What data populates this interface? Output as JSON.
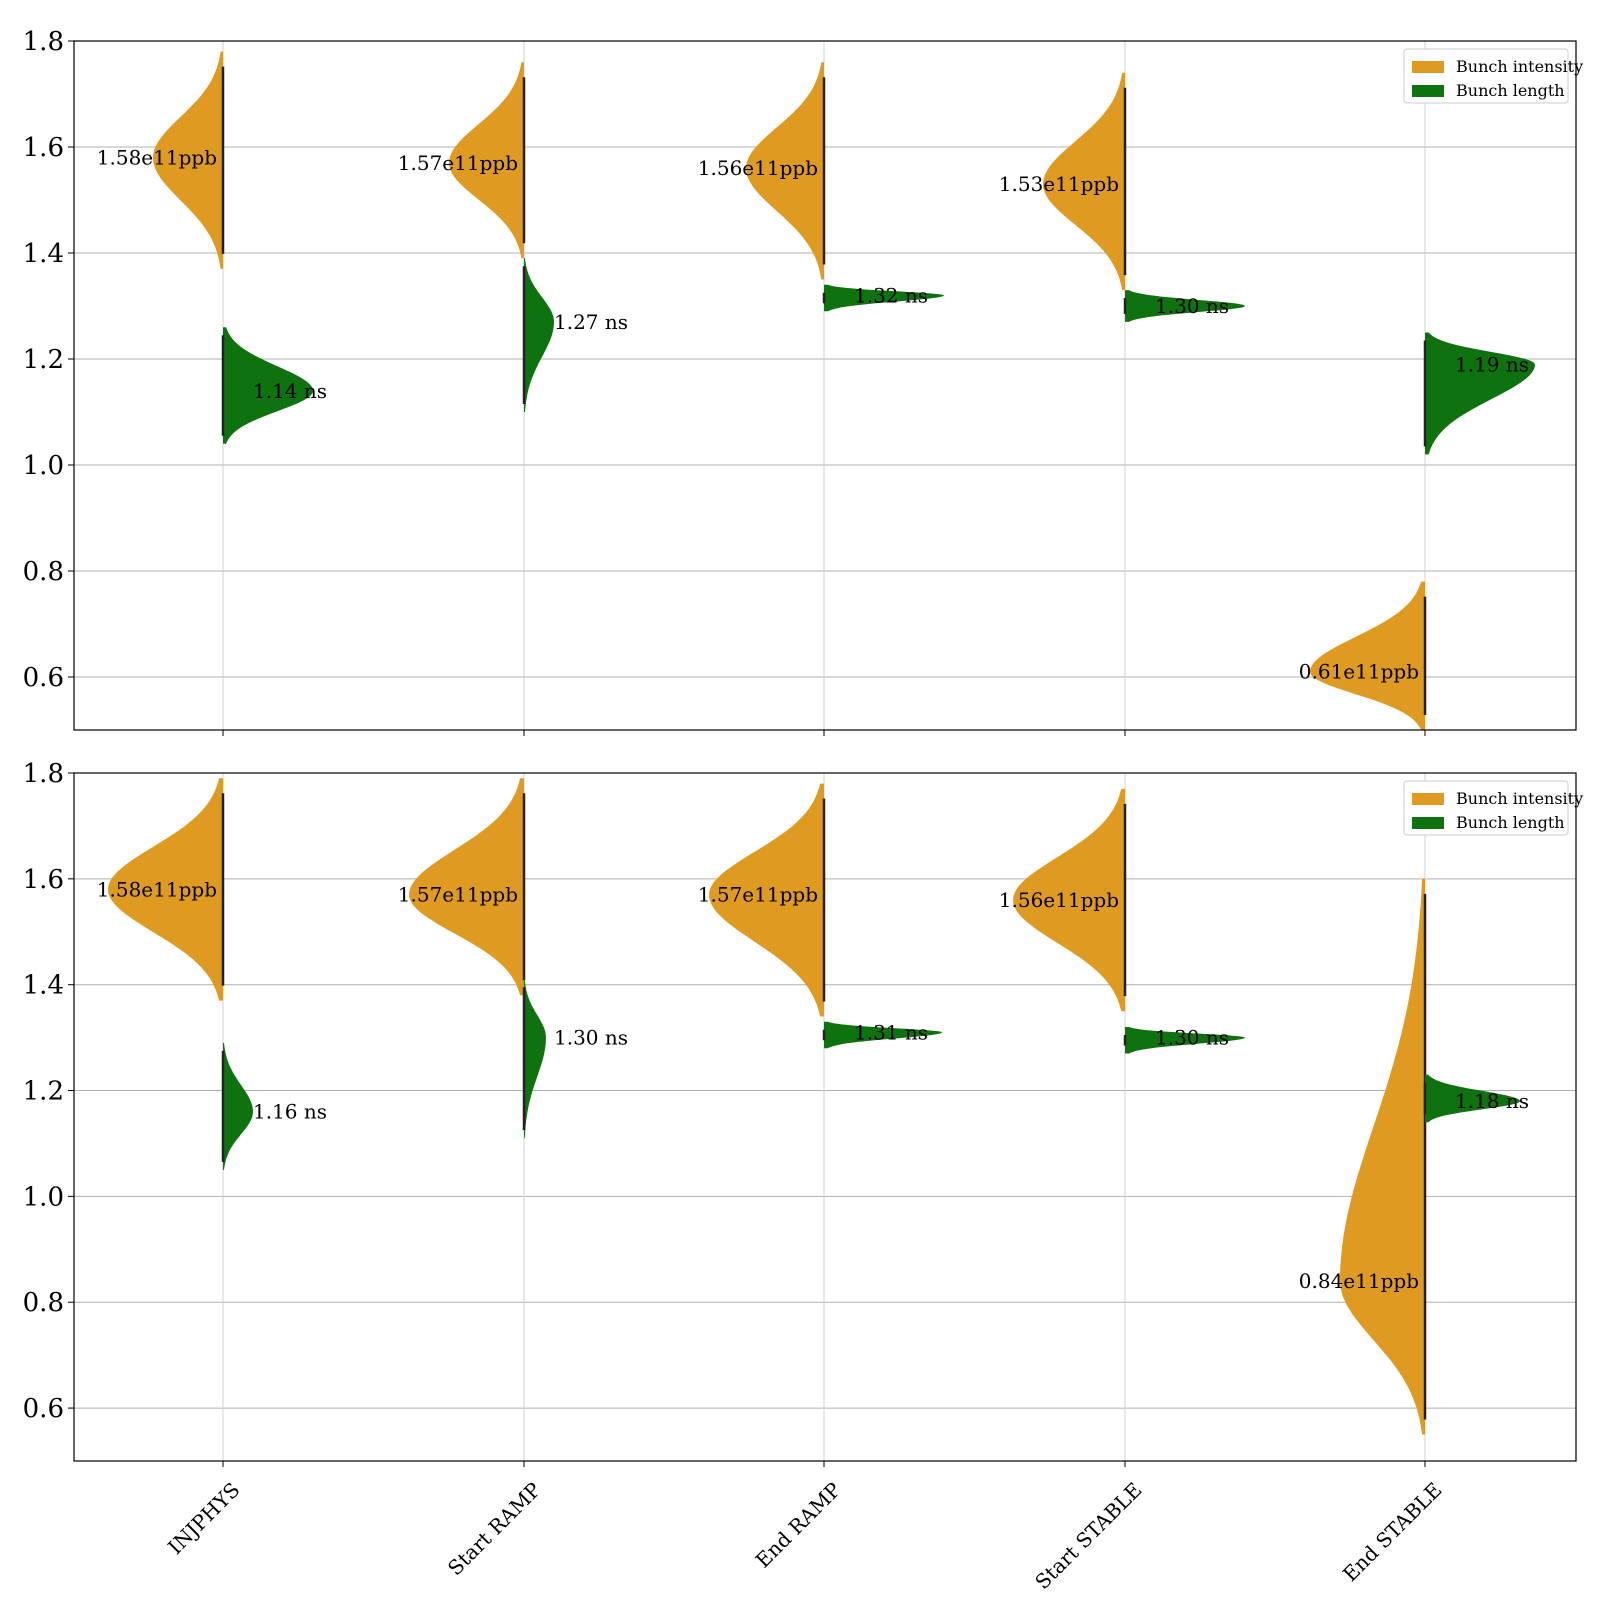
{
  "chart_data": [
    {
      "type": "violin",
      "categories": [
        "INJPHYS",
        "Start RAMP",
        "End RAMP",
        "Start STABLE",
        "End STABLE"
      ],
      "ylim": [
        0.5,
        1.8
      ],
      "yticks": [
        "0.6",
        "0.8",
        "1.0",
        "1.2",
        "1.4",
        "1.6",
        "1.8"
      ],
      "grid": "horizontal",
      "legend": {
        "placement": "top-right",
        "entries": [
          "Bunch intensity",
          "Bunch length"
        ]
      },
      "series": [
        {
          "name": "Bunch intensity",
          "color": "#DF9B21",
          "side": "left",
          "medians": [
            1.58,
            1.57,
            1.56,
            1.53,
            0.61
          ],
          "labels": [
            "1.58e11ppb",
            "1.57e11ppb",
            "1.56e11ppb",
            "1.53e11ppb",
            "0.61e11ppb"
          ],
          "ranges": [
            [
              1.37,
              1.78
            ],
            [
              1.39,
              1.76
            ],
            [
              1.35,
              1.76
            ],
            [
              1.33,
              1.74
            ],
            [
              0.5,
              0.78
            ]
          ]
        },
        {
          "name": "Bunch length",
          "color": "#0E720E",
          "side": "right",
          "medians": [
            1.14,
            1.27,
            1.32,
            1.3,
            1.19
          ],
          "labels": [
            "1.14 ns",
            "1.27 ns",
            "1.32 ns",
            "1.30 ns",
            "1.19 ns"
          ],
          "ranges": [
            [
              1.04,
              1.26
            ],
            [
              1.1,
              1.39
            ],
            [
              1.29,
              1.34
            ],
            [
              1.27,
              1.33
            ],
            [
              1.02,
              1.25
            ]
          ]
        }
      ]
    },
    {
      "type": "violin",
      "categories": [
        "INJPHYS",
        "Start RAMP",
        "End RAMP",
        "Start STABLE",
        "End STABLE"
      ],
      "ylim": [
        0.5,
        1.8
      ],
      "yticks": [
        "0.6",
        "0.8",
        "1.0",
        "1.2",
        "1.4",
        "1.6",
        "1.8"
      ],
      "grid": "horizontal",
      "legend": {
        "placement": "top-right",
        "entries": [
          "Bunch intensity",
          "Bunch length"
        ]
      },
      "series": [
        {
          "name": "Bunch intensity",
          "color": "#DF9B21",
          "side": "left",
          "medians": [
            1.58,
            1.57,
            1.57,
            1.56,
            0.84
          ],
          "labels": [
            "1.58e11ppb",
            "1.57e11ppb",
            "1.57e11ppb",
            "1.56e11ppb",
            "0.84e11ppb"
          ],
          "ranges": [
            [
              1.37,
              1.79
            ],
            [
              1.38,
              1.79
            ],
            [
              1.34,
              1.78
            ],
            [
              1.35,
              1.77
            ],
            [
              0.55,
              1.6
            ]
          ]
        },
        {
          "name": "Bunch length",
          "color": "#0E720E",
          "side": "right",
          "medians": [
            1.16,
            1.3,
            1.31,
            1.3,
            1.18
          ],
          "labels": [
            "1.16 ns",
            "1.30 ns",
            "1.31 ns",
            "1.30 ns",
            "1.18 ns"
          ],
          "ranges": [
            [
              1.05,
              1.29
            ],
            [
              1.11,
              1.41
            ],
            [
              1.28,
              1.33
            ],
            [
              1.27,
              1.32
            ],
            [
              1.14,
              1.23
            ]
          ]
        }
      ]
    }
  ]
}
